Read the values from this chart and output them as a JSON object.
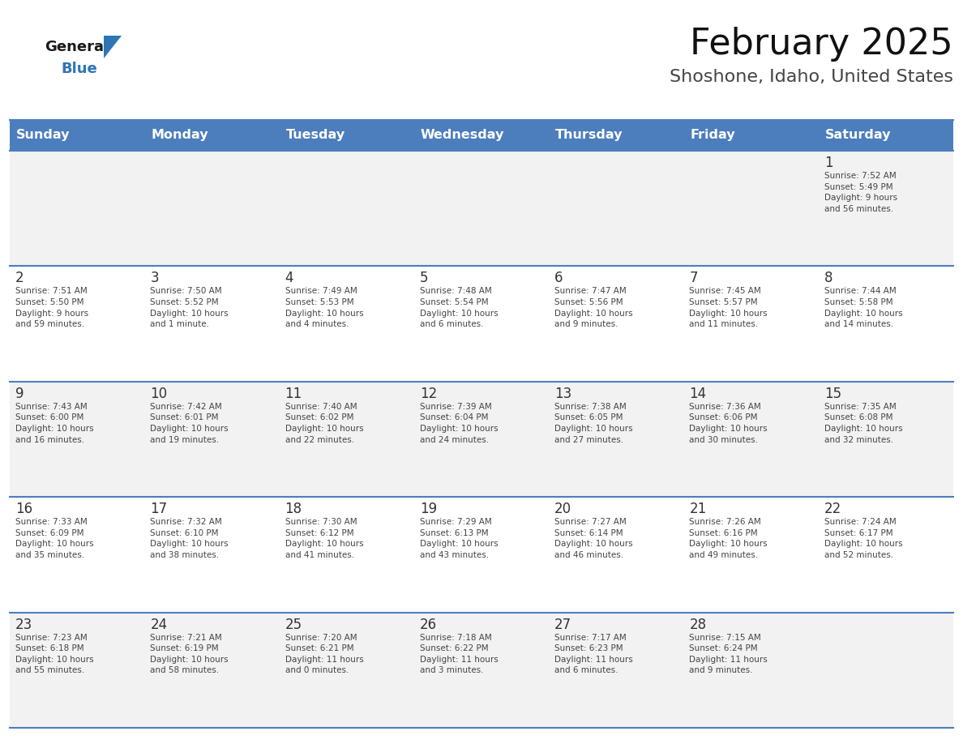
{
  "title": "February 2025",
  "subtitle": "Shoshone, Idaho, United States",
  "header_bg": "#4C7EBE",
  "header_text_color": "#FFFFFF",
  "header_font_size": 11.5,
  "title_font_size": 32,
  "subtitle_font_size": 16,
  "day_headers": [
    "Sunday",
    "Monday",
    "Tuesday",
    "Wednesday",
    "Thursday",
    "Friday",
    "Saturday"
  ],
  "cell_bg_odd": "#F2F2F2",
  "cell_bg_even": "#FFFFFF",
  "cell_border_color": "#4C7EBE",
  "day_num_color": "#333333",
  "text_color": "#444444",
  "logo_general_color": "#1a1a1a",
  "logo_blue_color": "#2E75B6",
  "calendar_data": [
    [
      null,
      null,
      null,
      null,
      null,
      null,
      {
        "day": 1,
        "sunrise": "7:52 AM",
        "sunset": "5:49 PM",
        "daylight": "9 hours\nand 56 minutes."
      }
    ],
    [
      {
        "day": 2,
        "sunrise": "7:51 AM",
        "sunset": "5:50 PM",
        "daylight": "9 hours\nand 59 minutes."
      },
      {
        "day": 3,
        "sunrise": "7:50 AM",
        "sunset": "5:52 PM",
        "daylight": "10 hours\nand 1 minute."
      },
      {
        "day": 4,
        "sunrise": "7:49 AM",
        "sunset": "5:53 PM",
        "daylight": "10 hours\nand 4 minutes."
      },
      {
        "day": 5,
        "sunrise": "7:48 AM",
        "sunset": "5:54 PM",
        "daylight": "10 hours\nand 6 minutes."
      },
      {
        "day": 6,
        "sunrise": "7:47 AM",
        "sunset": "5:56 PM",
        "daylight": "10 hours\nand 9 minutes."
      },
      {
        "day": 7,
        "sunrise": "7:45 AM",
        "sunset": "5:57 PM",
        "daylight": "10 hours\nand 11 minutes."
      },
      {
        "day": 8,
        "sunrise": "7:44 AM",
        "sunset": "5:58 PM",
        "daylight": "10 hours\nand 14 minutes."
      }
    ],
    [
      {
        "day": 9,
        "sunrise": "7:43 AM",
        "sunset": "6:00 PM",
        "daylight": "10 hours\nand 16 minutes."
      },
      {
        "day": 10,
        "sunrise": "7:42 AM",
        "sunset": "6:01 PM",
        "daylight": "10 hours\nand 19 minutes."
      },
      {
        "day": 11,
        "sunrise": "7:40 AM",
        "sunset": "6:02 PM",
        "daylight": "10 hours\nand 22 minutes."
      },
      {
        "day": 12,
        "sunrise": "7:39 AM",
        "sunset": "6:04 PM",
        "daylight": "10 hours\nand 24 minutes."
      },
      {
        "day": 13,
        "sunrise": "7:38 AM",
        "sunset": "6:05 PM",
        "daylight": "10 hours\nand 27 minutes."
      },
      {
        "day": 14,
        "sunrise": "7:36 AM",
        "sunset": "6:06 PM",
        "daylight": "10 hours\nand 30 minutes."
      },
      {
        "day": 15,
        "sunrise": "7:35 AM",
        "sunset": "6:08 PM",
        "daylight": "10 hours\nand 32 minutes."
      }
    ],
    [
      {
        "day": 16,
        "sunrise": "7:33 AM",
        "sunset": "6:09 PM",
        "daylight": "10 hours\nand 35 minutes."
      },
      {
        "day": 17,
        "sunrise": "7:32 AM",
        "sunset": "6:10 PM",
        "daylight": "10 hours\nand 38 minutes."
      },
      {
        "day": 18,
        "sunrise": "7:30 AM",
        "sunset": "6:12 PM",
        "daylight": "10 hours\nand 41 minutes."
      },
      {
        "day": 19,
        "sunrise": "7:29 AM",
        "sunset": "6:13 PM",
        "daylight": "10 hours\nand 43 minutes."
      },
      {
        "day": 20,
        "sunrise": "7:27 AM",
        "sunset": "6:14 PM",
        "daylight": "10 hours\nand 46 minutes."
      },
      {
        "day": 21,
        "sunrise": "7:26 AM",
        "sunset": "6:16 PM",
        "daylight": "10 hours\nand 49 minutes."
      },
      {
        "day": 22,
        "sunrise": "7:24 AM",
        "sunset": "6:17 PM",
        "daylight": "10 hours\nand 52 minutes."
      }
    ],
    [
      {
        "day": 23,
        "sunrise": "7:23 AM",
        "sunset": "6:18 PM",
        "daylight": "10 hours\nand 55 minutes."
      },
      {
        "day": 24,
        "sunrise": "7:21 AM",
        "sunset": "6:19 PM",
        "daylight": "10 hours\nand 58 minutes."
      },
      {
        "day": 25,
        "sunrise": "7:20 AM",
        "sunset": "6:21 PM",
        "daylight": "11 hours\nand 0 minutes."
      },
      {
        "day": 26,
        "sunrise": "7:18 AM",
        "sunset": "6:22 PM",
        "daylight": "11 hours\nand 3 minutes."
      },
      {
        "day": 27,
        "sunrise": "7:17 AM",
        "sunset": "6:23 PM",
        "daylight": "11 hours\nand 6 minutes."
      },
      {
        "day": 28,
        "sunrise": "7:15 AM",
        "sunset": "6:24 PM",
        "daylight": "11 hours\nand 9 minutes."
      },
      null
    ]
  ]
}
